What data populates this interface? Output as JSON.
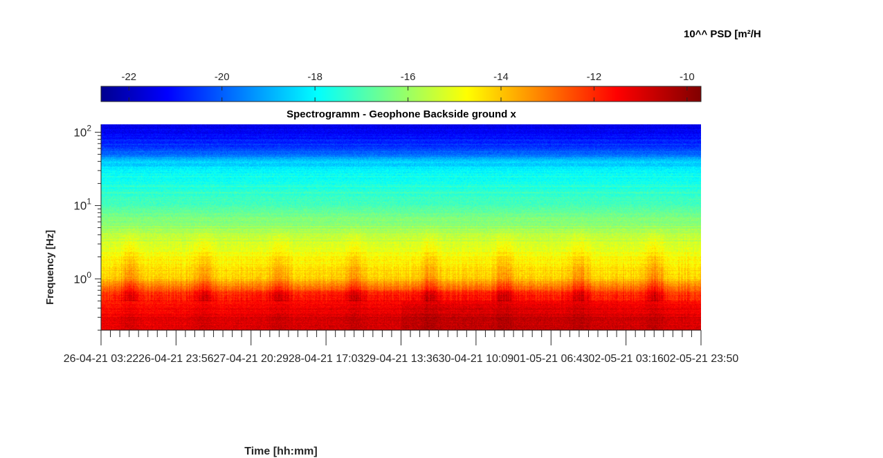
{
  "chart_data": {
    "type": "heatmap",
    "title": "Spectrogramm - Geophone Backside ground x",
    "xlabel": "Time [hh:mm]",
    "ylabel": "Frequency [Hz]",
    "colorbar_label": "10^^ PSD [m²/H",
    "colormap": "jet",
    "y_scale": "log",
    "ylim": [
      0.2,
      128
    ],
    "y_ticks": [
      1,
      10,
      100
    ],
    "y_tick_labels": [
      {
        "base": "10",
        "exp": "0"
      },
      {
        "base": "10",
        "exp": "1"
      },
      {
        "base": "10",
        "exp": "2"
      }
    ],
    "x_tick_labels": [
      "26-04-21 03:22",
      "26-04-21 23:56",
      "27-04-21 20:29",
      "28-04-21 17:03",
      "29-04-21 13:36",
      "30-04-21 10:09",
      "01-05-21 06:43",
      "02-05-21 03:16",
      "02-05-21 23:50"
    ],
    "colorbar_range": [
      -22.6,
      -9.7
    ],
    "colorbar_ticks": [
      -22,
      -20,
      -18,
      -16,
      -14,
      -12,
      -10
    ],
    "colorbar_tick_labels": [
      "-22",
      "-20",
      "-18",
      "-16",
      "-14",
      "-12",
      "-10"
    ],
    "psd_profile": {
      "frequency_hz": [
        0.2,
        0.3,
        0.45,
        0.6,
        0.8,
        1.0,
        1.5,
        2.0,
        3.0,
        4.0,
        5.0,
        7.0,
        10.0,
        15.0,
        20.0,
        30.0,
        40.0,
        50.0,
        60.0,
        80.0,
        100.0,
        128.0
      ],
      "log_psd": [
        -11.0,
        -11.2,
        -11.6,
        -11.9,
        -12.9,
        -13.8,
        -14.2,
        -14.6,
        -15.0,
        -15.4,
        -15.8,
        -16.2,
        -16.8,
        -17.1,
        -17.4,
        -17.8,
        -18.5,
        -19.6,
        -20.2,
        -20.7,
        -21.1,
        -21.4
      ]
    }
  }
}
